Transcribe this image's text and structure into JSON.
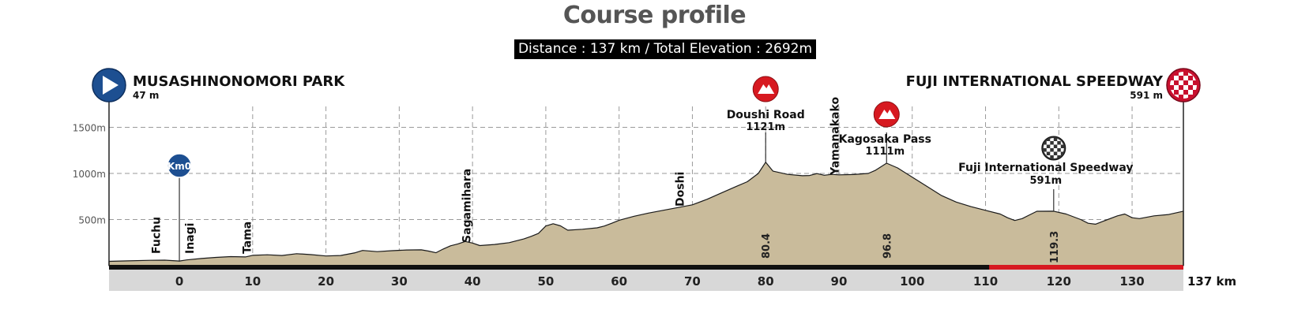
{
  "chart_data": {
    "type": "area",
    "title": "Course profile",
    "subtitle": "Distance : 137 km / Total Elevation : 2692m",
    "x_unit": "km",
    "end_label": "137 km",
    "xlim": [
      -9.6,
      137
    ],
    "ylim": [
      0,
      1900
    ],
    "x_ticks": [
      0,
      10,
      20,
      30,
      40,
      50,
      60,
      70,
      80,
      90,
      100,
      110,
      120,
      130
    ],
    "x_tick_labels": [
      "0",
      "10",
      "20",
      "30",
      "40",
      "50",
      "60",
      "70",
      "80",
      "90",
      "100",
      "110",
      "120",
      "130"
    ],
    "y_ticks": [
      500,
      1000,
      1500
    ],
    "y_tick_labels": [
      "500m",
      "1000m",
      "1500m"
    ],
    "grid": true,
    "profile": [
      [
        -9.6,
        47
      ],
      [
        -7,
        52
      ],
      [
        -4,
        58
      ],
      [
        -2,
        60
      ],
      [
        0,
        50
      ],
      [
        1,
        62
      ],
      [
        3,
        78
      ],
      [
        5,
        90
      ],
      [
        7,
        98
      ],
      [
        9,
        95
      ],
      [
        10,
        112
      ],
      [
        12,
        118
      ],
      [
        14,
        110
      ],
      [
        16,
        130
      ],
      [
        18,
        120
      ],
      [
        20,
        105
      ],
      [
        22,
        110
      ],
      [
        24,
        140
      ],
      [
        25,
        165
      ],
      [
        27,
        152
      ],
      [
        29,
        162
      ],
      [
        31,
        170
      ],
      [
        33,
        172
      ],
      [
        34,
        158
      ],
      [
        35,
        140
      ],
      [
        36,
        180
      ],
      [
        37,
        215
      ],
      [
        38,
        236
      ],
      [
        39,
        262
      ],
      [
        40,
        245
      ],
      [
        41,
        218
      ],
      [
        43,
        230
      ],
      [
        45,
        250
      ],
      [
        47,
        290
      ],
      [
        48,
        318
      ],
      [
        49,
        350
      ],
      [
        50,
        430
      ],
      [
        51,
        455
      ],
      [
        52,
        432
      ],
      [
        53,
        385
      ],
      [
        55,
        395
      ],
      [
        57,
        410
      ],
      [
        58,
        430
      ],
      [
        59,
        460
      ],
      [
        60,
        492
      ],
      [
        62,
        535
      ],
      [
        64,
        570
      ],
      [
        66,
        600
      ],
      [
        68,
        630
      ],
      [
        70,
        660
      ],
      [
        72,
        720
      ],
      [
        74,
        790
      ],
      [
        76,
        860
      ],
      [
        77.5,
        910
      ],
      [
        79,
        1000
      ],
      [
        80,
        1121
      ],
      [
        81,
        1025
      ],
      [
        83,
        990
      ],
      [
        85,
        975
      ],
      [
        86,
        978
      ],
      [
        87,
        998
      ],
      [
        88,
        980
      ],
      [
        89,
        990
      ],
      [
        90,
        985
      ],
      [
        92,
        988
      ],
      [
        94,
        1000
      ],
      [
        95,
        1035
      ],
      [
        96.5,
        1111
      ],
      [
        98,
        1060
      ],
      [
        100,
        960
      ],
      [
        102,
        860
      ],
      [
        104,
        760
      ],
      [
        106,
        690
      ],
      [
        108,
        640
      ],
      [
        110,
        600
      ],
      [
        112,
        560
      ],
      [
        113,
        520
      ],
      [
        114,
        490
      ],
      [
        115,
        510
      ],
      [
        116,
        550
      ],
      [
        117,
        590
      ],
      [
        119.3,
        591
      ],
      [
        121,
        560
      ],
      [
        123,
        500
      ],
      [
        124,
        460
      ],
      [
        125,
        450
      ],
      [
        126,
        480
      ],
      [
        128,
        540
      ],
      [
        129,
        560
      ],
      [
        130,
        520
      ],
      [
        131,
        510
      ],
      [
        133,
        540
      ],
      [
        135,
        555
      ],
      [
        137,
        591
      ]
    ],
    "start": {
      "name": "MUSASHINONOMORI PARK",
      "elevation_label": "47 m"
    },
    "finish": {
      "name": "FUJI INTERNATIONAL SPEEDWAY",
      "elevation_label": "591 m"
    },
    "place_labels": [
      {
        "text": "Fuchu",
        "km": -3.2
      },
      {
        "text": "Inagi",
        "km": 1.4
      },
      {
        "text": "Tama",
        "km": 9.2
      },
      {
        "text": "Sagamihara",
        "km": 39.2
      },
      {
        "text": "Doshi",
        "km": 68.3
      },
      {
        "text": "Yamanakako",
        "km": 89.4
      }
    ],
    "km0_marker": {
      "label": "Km0",
      "km": 0
    },
    "climbs": [
      {
        "name": "Doushi Road",
        "elevation_label": "1121m",
        "km": 80,
        "elevation": 1121,
        "km_label": "80.4"
      },
      {
        "name": "Kagosaka Pass",
        "elevation_label": "1111m",
        "km": 96.5,
        "elevation": 1111,
        "km_label": "96.8"
      }
    ],
    "intermediate_finish": {
      "name": "Fuji International Speedway",
      "elevation_label": "591m",
      "km": 119.3,
      "elevation": 591,
      "km_label": "119.3"
    },
    "final_circuit": {
      "from_km": 110.5,
      "to_km": 137
    },
    "colors": {
      "profile_fill": "#c9bb9b",
      "profile_stroke": "#1a1a1a",
      "start_marker": "#1d4f91",
      "finish_marker": "#c8102e",
      "climb_marker": "#d71920",
      "circuit_bar": "#d71920",
      "grid": "#9a9a9a",
      "axis_band": "#d8d8d8"
    }
  }
}
